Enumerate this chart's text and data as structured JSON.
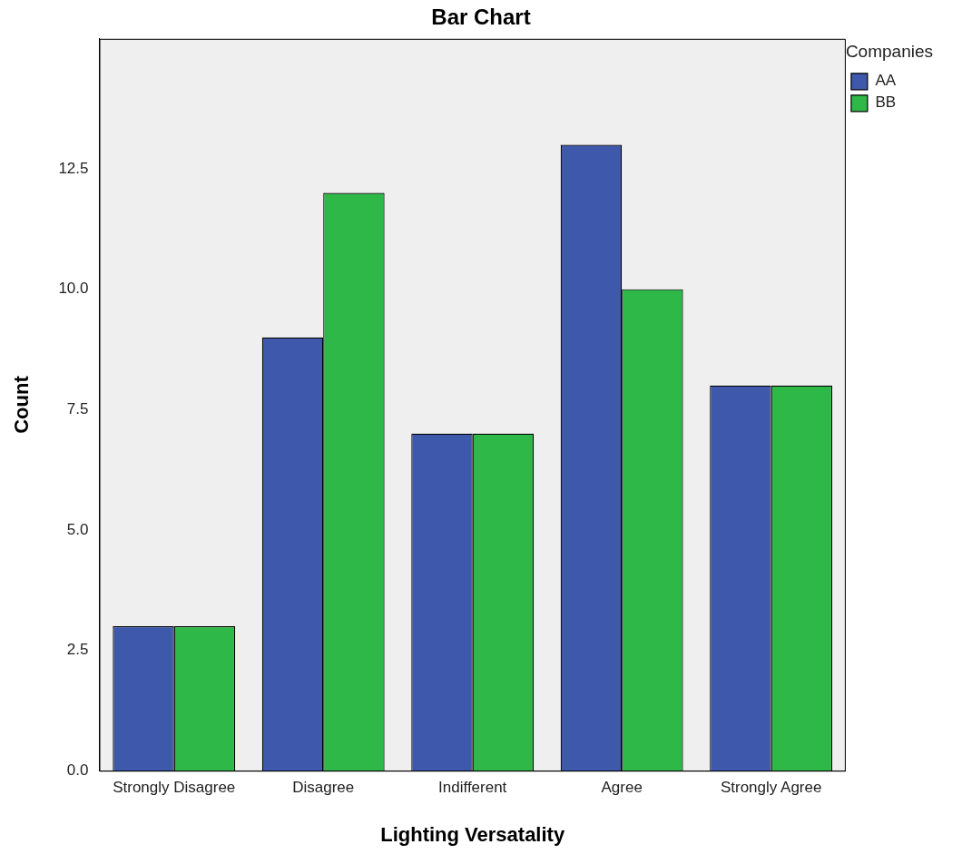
{
  "chart_data": {
    "type": "bar",
    "title": "Bar Chart",
    "xlabel": "Lighting Versatality",
    "ylabel": "Count",
    "legend_title": "Companies",
    "legend": "top right",
    "grid": false,
    "categories": [
      "Strongly Disagree",
      "Disagree",
      "Indifferent",
      "Agree",
      "Strongly Agree"
    ],
    "series": [
      {
        "name": "AA",
        "color": "#3e58ac",
        "values": [
          3,
          9,
          7,
          13,
          8
        ]
      },
      {
        "name": "BB",
        "color": "#2eb848",
        "values": [
          3,
          12,
          7,
          10,
          8
        ]
      }
    ],
    "ylim": [
      0,
      15.2
    ],
    "yticks": [
      {
        "value": 0,
        "label": "0.0"
      },
      {
        "value": 2.5,
        "label": "2.5"
      },
      {
        "value": 5,
        "label": "5.0"
      },
      {
        "value": 7.5,
        "label": "7.5"
      },
      {
        "value": 10,
        "label": "10.0"
      },
      {
        "value": 12.5,
        "label": "12.5"
      }
    ]
  }
}
